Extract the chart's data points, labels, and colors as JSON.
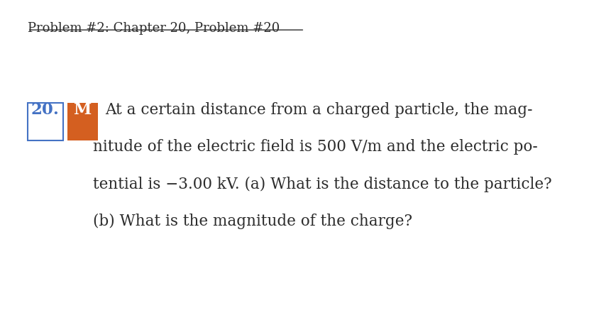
{
  "title": "Problem #2: Chapter 20, Problem #20",
  "problem_number": "20.",
  "badge_text": "M",
  "badge_bg_color": "#d45f20",
  "badge_text_color": "#ffffff",
  "number_box_color": "#4472c4",
  "number_text_color": "#4472c4",
  "background_color": "#ffffff",
  "text_color": "#2c2c2c",
  "title_fontsize": 13.0,
  "body_fontsize": 15.5,
  "line1": "At a certain distance from a charged particle, the mag-",
  "line2": "nitude of the electric field is 500 V/m and the electric po-",
  "line3": "tential is −3.00 kV. (a) What is the distance to the particle?",
  "line4": "(b) What is the magnitude of the charge?"
}
